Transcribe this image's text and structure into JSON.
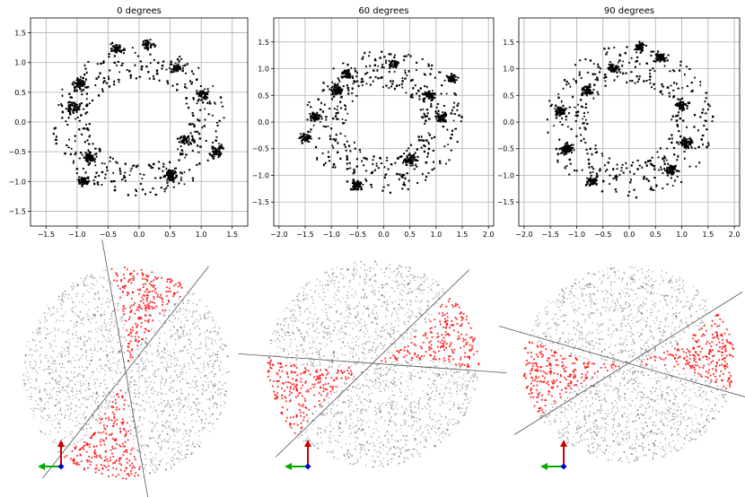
{
  "chart_data": [
    {
      "type": "scatter",
      "title": "0 degrees",
      "xlim": [
        -1.75,
        1.75
      ],
      "ylim": [
        -1.75,
        1.75
      ],
      "xticks": [
        -1.5,
        -1.0,
        -0.5,
        0.0,
        0.5,
        1.0,
        1.5
      ],
      "yticks": [
        -1.5,
        -1.0,
        -0.5,
        0.0,
        0.5,
        1.0,
        1.5
      ],
      "grid": true,
      "marker_color": "#000000",
      "point_cloud": {
        "shape": "ring",
        "radius_range": [
          0.8,
          1.4
        ],
        "clusters": [
          [
            -0.95,
            0.65
          ],
          [
            -1.05,
            0.25
          ],
          [
            -0.8,
            -0.6
          ],
          [
            -0.9,
            -1.0
          ],
          [
            0.6,
            0.9
          ],
          [
            1.0,
            0.45
          ],
          [
            0.75,
            -0.3
          ],
          [
            0.5,
            -0.9
          ],
          [
            -0.35,
            1.25
          ],
          [
            0.15,
            1.3
          ],
          [
            1.25,
            -0.5
          ]
        ]
      }
    },
    {
      "type": "scatter",
      "title": "60 degrees",
      "xlim": [
        -2.1,
        2.1
      ],
      "ylim": [
        -1.95,
        1.95
      ],
      "xticks": [
        -2.0,
        -1.5,
        -1.0,
        -0.5,
        0.0,
        0.5,
        1.0,
        1.5,
        2.0
      ],
      "yticks": [
        -1.5,
        -1.0,
        -0.5,
        0.0,
        0.5,
        1.0,
        1.5
      ],
      "grid": true,
      "marker_color": "#000000",
      "point_cloud": {
        "shape": "ring",
        "radius_range": [
          0.7,
          1.5
        ],
        "clusters": [
          [
            -0.9,
            0.6
          ],
          [
            -1.3,
            0.1
          ],
          [
            -0.7,
            0.9
          ],
          [
            -0.5,
            -1.2
          ],
          [
            0.9,
            0.5
          ],
          [
            1.1,
            0.1
          ],
          [
            0.5,
            -0.7
          ],
          [
            0.2,
            1.1
          ],
          [
            -1.5,
            -0.3
          ],
          [
            1.3,
            0.8
          ]
        ]
      }
    },
    {
      "type": "scatter",
      "title": "90 degrees",
      "xlim": [
        -2.1,
        2.1
      ],
      "ylim": [
        -1.95,
        1.95
      ],
      "xticks": [
        -2.0,
        -1.5,
        -1.0,
        -0.5,
        0.0,
        0.5,
        1.0,
        1.5,
        2.0
      ],
      "yticks": [
        -1.5,
        -1.0,
        -0.5,
        0.0,
        0.5,
        1.0,
        1.5
      ],
      "grid": true,
      "marker_color": "#000000",
      "point_cloud": {
        "shape": "ring",
        "radius_range": [
          0.8,
          1.6
        ],
        "clusters": [
          [
            -1.2,
            -0.5
          ],
          [
            -1.3,
            0.2
          ],
          [
            -0.8,
            0.6
          ],
          [
            0.6,
            1.2
          ],
          [
            1.0,
            0.3
          ],
          [
            1.1,
            -0.4
          ],
          [
            0.8,
            -0.9
          ],
          [
            -0.7,
            -1.1
          ],
          [
            -0.3,
            1.0
          ],
          [
            0.2,
            1.4
          ]
        ]
      }
    }
  ],
  "renders": [
    {
      "name": "0 degrees",
      "highlight_color": "#ff0000",
      "cloud_color": "#000000",
      "wedge_angle_deg": 0
    },
    {
      "name": "60 degrees",
      "highlight_color": "#ff0000",
      "cloud_color": "#000000",
      "wedge_angle_deg": 60
    },
    {
      "name": "90 degrees",
      "highlight_color": "#ff0000",
      "cloud_color": "#000000",
      "wedge_angle_deg": 90
    }
  ],
  "axis_gizmo_colors": {
    "x": "#0000cc",
    "y": "#00aa00",
    "z": "#cc0000"
  }
}
